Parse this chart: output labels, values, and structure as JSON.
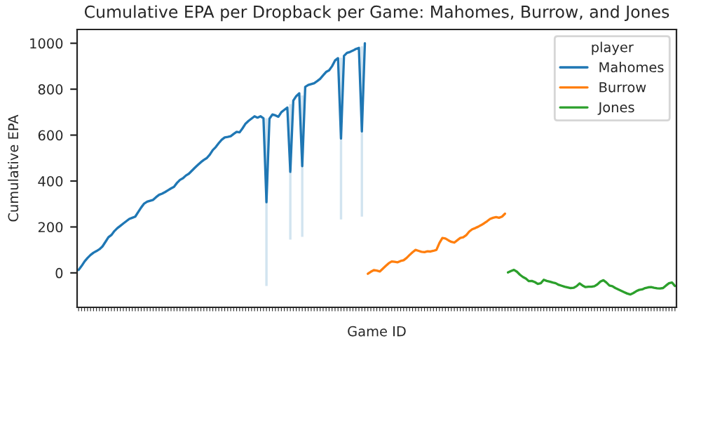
{
  "chart_data": {
    "type": "line",
    "title": "Cumulative EPA per Dropback per Game: Mahomes, Burrow, and Jones",
    "xlabel": "Game ID",
    "ylabel": "Cumulative EPA",
    "legend_title": "player",
    "legend": "top right",
    "grid": false,
    "tick_labels": "y",
    "ylim": [
      -150,
      1060
    ],
    "yticks": [
      0,
      200,
      400,
      600,
      800,
      1000
    ],
    "categories": [
      null,
      null,
      null,
      null,
      null,
      null,
      null,
      null,
      null,
      null,
      null,
      null,
      null,
      null,
      null,
      null,
      null,
      null,
      null,
      null,
      null,
      null,
      null,
      null,
      null,
      null,
      null,
      null,
      null,
      null,
      null,
      null,
      null,
      null,
      null,
      null,
      null,
      null,
      null,
      null,
      null,
      null,
      null,
      null,
      null,
      null,
      null,
      null,
      null,
      null,
      null,
      null,
      null,
      null,
      null,
      null,
      null,
      null,
      null,
      null,
      null,
      null,
      null,
      null,
      null,
      null,
      null,
      null,
      null,
      null,
      null,
      null,
      null,
      null,
      null,
      null,
      null,
      null,
      null,
      null,
      null,
      null,
      null,
      null,
      null,
      null,
      null,
      null,
      null,
      null,
      null,
      null,
      null,
      null,
      null,
      null,
      null,
      null,
      null,
      null,
      null,
      null,
      null,
      null,
      null,
      null,
      null,
      null,
      null,
      null,
      null,
      null,
      null,
      null,
      null,
      null,
      null,
      null,
      null,
      null,
      null,
      null,
      null,
      null,
      null,
      null,
      null,
      null,
      null,
      null,
      null,
      null,
      null,
      null,
      null,
      null,
      null,
      null,
      null,
      null,
      null,
      null,
      null,
      null,
      null,
      null,
      null,
      null,
      null,
      null,
      null,
      null,
      null,
      null,
      null,
      null,
      null,
      null,
      null,
      null,
      null,
      null,
      null,
      null,
      null,
      null,
      null,
      null,
      null,
      null,
      null,
      null,
      null,
      null,
      null,
      null,
      null,
      null,
      null,
      null,
      null,
      null,
      null,
      null,
      null,
      null,
      null,
      null,
      null,
      null,
      null,
      null,
      null,
      null,
      null,
      null,
      null,
      null,
      null,
      null,
      null
    ],
    "series": [
      {
        "name": "Mahomes",
        "color": "#1f77b4",
        "values": [
          13,
          30,
          50,
          65,
          78,
          88,
          95,
          103,
          115,
          135,
          155,
          165,
          182,
          195,
          205,
          215,
          225,
          235,
          240,
          245,
          265,
          285,
          302,
          310,
          314,
          318,
          330,
          340,
          345,
          352,
          360,
          368,
          375,
          392,
          405,
          412,
          424,
          432,
          445,
          458,
          470,
          482,
          492,
          500,
          515,
          535,
          548,
          565,
          580,
          590,
          592,
          595,
          605,
          614,
          612,
          630,
          650,
          662,
          672,
          682,
          676,
          682,
          673,
          308,
          671,
          690,
          686,
          680,
          700,
          710,
          720,
          440,
          750,
          770,
          782,
          465,
          810,
          818,
          822,
          826,
          835,
          845,
          860,
          875,
          882,
          900,
          925,
          935,
          585,
          945,
          958,
          962,
          968,
          975,
          980,
          616,
          1000,
          null,
          null,
          null,
          null,
          null,
          null,
          null,
          null,
          null,
          null,
          null,
          null,
          null,
          null,
          null,
          null,
          null,
          null,
          null,
          null,
          null,
          null,
          null,
          null,
          null,
          null,
          null,
          null,
          null,
          null,
          null,
          null,
          null,
          null,
          null,
          null,
          null,
          null,
          null,
          null,
          null,
          null,
          null,
          null,
          null,
          null,
          null,
          null,
          null,
          null,
          null,
          null,
          null,
          null,
          null,
          null,
          null,
          null,
          null,
          null,
          null,
          null,
          null,
          null,
          null,
          null,
          null,
          null,
          null,
          null,
          null,
          null,
          null,
          null,
          null,
          null,
          null,
          null,
          null,
          null,
          null,
          null,
          null,
          null,
          null,
          null,
          null,
          null,
          null,
          null,
          null,
          null,
          null,
          null,
          null,
          null,
          null,
          null,
          null,
          null,
          null,
          null,
          null,
          null
        ],
        "lower": [
          null,
          null,
          null,
          null,
          null,
          null,
          null,
          null,
          null,
          null,
          null,
          null,
          null,
          null,
          null,
          null,
          null,
          null,
          null,
          null,
          null,
          null,
          null,
          null,
          null,
          null,
          null,
          null,
          null,
          null,
          null,
          null,
          null,
          null,
          null,
          null,
          null,
          null,
          null,
          null,
          null,
          null,
          null,
          null,
          null,
          null,
          null,
          null,
          null,
          null,
          null,
          null,
          null,
          null,
          null,
          null,
          null,
          null,
          null,
          null,
          null,
          null,
          null,
          -57,
          null,
          null,
          null,
          null,
          null,
          null,
          null,
          145,
          null,
          null,
          null,
          157,
          null,
          null,
          null,
          null,
          null,
          null,
          null,
          null,
          null,
          null,
          null,
          null,
          233,
          null,
          null,
          null,
          null,
          null,
          null,
          245,
          null,
          null,
          null,
          null,
          null,
          null,
          null,
          null,
          null,
          null,
          null,
          null,
          null,
          null,
          null,
          null,
          null,
          null,
          null,
          null,
          null,
          null,
          null,
          null,
          null,
          null,
          null,
          null,
          null,
          null,
          null,
          null,
          null,
          null,
          null,
          null,
          null,
          null,
          null,
          null,
          null,
          null,
          null,
          null,
          null,
          null,
          null,
          null,
          null,
          null,
          null,
          null,
          null,
          null,
          null,
          null,
          null,
          null,
          null,
          null,
          null,
          null,
          null,
          null,
          null,
          null,
          null,
          null,
          null,
          null,
          null,
          null,
          null,
          null,
          null,
          null,
          null,
          null,
          null,
          null,
          null,
          null,
          null,
          null,
          null,
          null,
          null,
          null,
          null,
          null,
          null,
          null,
          null,
          null,
          null,
          null,
          null,
          null,
          null,
          null,
          null,
          null,
          null,
          null,
          null
        ],
        "upper": [
          null,
          null,
          null,
          null,
          null,
          null,
          null,
          null,
          null,
          null,
          null,
          null,
          null,
          null,
          null,
          null,
          null,
          null,
          null,
          null,
          null,
          null,
          null,
          null,
          null,
          null,
          null,
          null,
          null,
          null,
          null,
          null,
          null,
          null,
          null,
          null,
          null,
          null,
          null,
          null,
          null,
          null,
          null,
          null,
          null,
          null,
          null,
          null,
          null,
          null,
          null,
          null,
          null,
          null,
          null,
          null,
          null,
          null,
          null,
          null,
          null,
          null,
          null,
          673,
          null,
          null,
          null,
          null,
          null,
          null,
          null,
          735,
          null,
          null,
          null,
          773,
          null,
          null,
          null,
          null,
          null,
          null,
          null,
          null,
          null,
          null,
          null,
          null,
          937,
          null,
          null,
          null,
          null,
          null,
          null,
          987,
          null,
          null,
          null,
          null,
          null,
          null,
          null,
          null,
          null,
          null,
          null,
          null,
          null,
          null,
          null,
          null,
          null,
          null,
          null,
          null,
          null,
          null,
          null,
          null,
          null,
          null,
          null,
          null,
          null,
          null,
          null,
          null,
          null,
          null,
          null,
          null,
          null,
          null,
          null,
          null,
          null,
          null,
          null,
          null,
          null,
          null,
          null,
          null,
          null,
          null,
          null,
          null,
          null,
          null,
          null,
          null,
          null,
          null,
          null,
          null,
          null,
          null,
          null,
          null,
          null,
          null,
          null,
          null,
          null,
          null,
          null,
          null,
          null,
          null,
          null,
          null,
          null,
          null,
          null,
          null,
          null,
          null,
          null,
          null,
          null,
          null,
          null,
          null,
          null,
          null,
          null,
          null,
          null,
          null,
          null,
          null,
          null,
          null,
          null,
          null,
          null,
          null,
          null,
          null,
          null
        ]
      },
      {
        "name": "Burrow",
        "color": "#ff7f0e",
        "values": [
          null,
          null,
          null,
          null,
          null,
          null,
          null,
          null,
          null,
          null,
          null,
          null,
          null,
          null,
          null,
          null,
          null,
          null,
          null,
          null,
          null,
          null,
          null,
          null,
          null,
          null,
          null,
          null,
          null,
          null,
          null,
          null,
          null,
          null,
          null,
          null,
          null,
          null,
          null,
          null,
          null,
          null,
          null,
          null,
          null,
          null,
          null,
          null,
          null,
          null,
          null,
          null,
          null,
          null,
          null,
          null,
          null,
          null,
          null,
          null,
          null,
          null,
          null,
          null,
          null,
          null,
          null,
          null,
          null,
          null,
          null,
          null,
          null,
          null,
          null,
          null,
          null,
          null,
          null,
          null,
          null,
          null,
          null,
          null,
          null,
          null,
          null,
          null,
          null,
          null,
          null,
          null,
          null,
          null,
          null,
          null,
          null,
          -4,
          5,
          12,
          10,
          6,
          18,
          30,
          42,
          50,
          48,
          46,
          52,
          55,
          65,
          78,
          90,
          100,
          96,
          92,
          90,
          94,
          93,
          96,
          100,
          130,
          152,
          150,
          142,
          135,
          132,
          142,
          152,
          155,
          164,
          180,
          190,
          195,
          201,
          208,
          216,
          225,
          235,
          240,
          243,
          240,
          245,
          258,
          null,
          null,
          null,
          null,
          null,
          null,
          null,
          null,
          null,
          null,
          null,
          null,
          null,
          null,
          null,
          null,
          null,
          null,
          null,
          null,
          null,
          null,
          null,
          null,
          null,
          null,
          null,
          null,
          null,
          null,
          null,
          null,
          null,
          null,
          null,
          null,
          null,
          null,
          null,
          null,
          null,
          null,
          null,
          null,
          null,
          null,
          null,
          null,
          null,
          null,
          null,
          null,
          null,
          null,
          null,
          null,
          null
        ]
      },
      {
        "name": "Jones",
        "color": "#2ca02c",
        "values": [
          null,
          null,
          null,
          null,
          null,
          null,
          null,
          null,
          null,
          null,
          null,
          null,
          null,
          null,
          null,
          null,
          null,
          null,
          null,
          null,
          null,
          null,
          null,
          null,
          null,
          null,
          null,
          null,
          null,
          null,
          null,
          null,
          null,
          null,
          null,
          null,
          null,
          null,
          null,
          null,
          null,
          null,
          null,
          null,
          null,
          null,
          null,
          null,
          null,
          null,
          null,
          null,
          null,
          null,
          null,
          null,
          null,
          null,
          null,
          null,
          null,
          null,
          null,
          null,
          null,
          null,
          null,
          null,
          null,
          null,
          null,
          null,
          null,
          null,
          null,
          null,
          null,
          null,
          null,
          null,
          null,
          null,
          null,
          null,
          null,
          null,
          null,
          null,
          null,
          null,
          null,
          null,
          null,
          null,
          null,
          null,
          null,
          null,
          null,
          null,
          null,
          null,
          null,
          null,
          null,
          null,
          null,
          null,
          null,
          null,
          null,
          null,
          null,
          null,
          null,
          null,
          null,
          null,
          null,
          null,
          null,
          null,
          null,
          null,
          null,
          null,
          null,
          null,
          null,
          null,
          null,
          null,
          null,
          null,
          null,
          null,
          null,
          null,
          null,
          null,
          null,
          null,
          null,
          null,
          2,
          8,
          13,
          5,
          -8,
          -18,
          -25,
          -36,
          -35,
          -40,
          -48,
          -45,
          -30,
          -35,
          -38,
          -42,
          -45,
          -52,
          -56,
          -60,
          -63,
          -66,
          -65,
          -58,
          -46,
          -55,
          -62,
          -60,
          -60,
          -58,
          -50,
          -38,
          -32,
          -42,
          -55,
          -58,
          -66,
          -72,
          -78,
          -84,
          -90,
          -94,
          -88,
          -80,
          -74,
          -72,
          -66,
          -63,
          -62,
          -65,
          -67,
          -68,
          -66,
          -55,
          -45,
          -42,
          -57
        ]
      }
    ]
  }
}
